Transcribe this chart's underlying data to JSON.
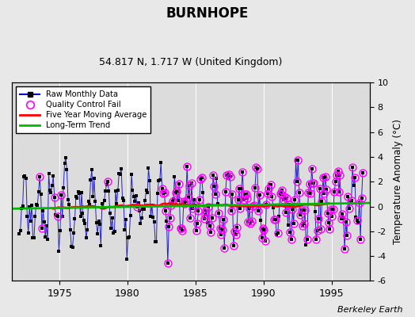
{
  "title": "BURNHOPE",
  "subtitle": "54.817 N, 1.717 W (United Kingdom)",
  "ylabel": "Temperature Anomaly (°C)",
  "credit": "Berkeley Earth",
  "ylim": [
    -6,
    10
  ],
  "yticks": [
    -6,
    -4,
    -2,
    0,
    2,
    4,
    6,
    8,
    10
  ],
  "xlim": [
    1971.5,
    1997.8
  ],
  "xticks": [
    1975,
    1980,
    1985,
    1990,
    1995
  ],
  "bg_color": "#e8e8e8",
  "plot_bg_color": "#dcdcdc",
  "grid_color": "#ffffff",
  "raw_color": "#0000cc",
  "qc_color": "#ff00ff",
  "moving_avg_color": "#ff0000",
  "trend_color": "#00bb00",
  "trend_endpoints": [
    [
      1971.5,
      -0.18
    ],
    [
      1997.8,
      0.28
    ]
  ],
  "seed": 777,
  "n_years_start": 1972.042,
  "n_years_end": 1997.3,
  "qc_start_year": 1982.5
}
